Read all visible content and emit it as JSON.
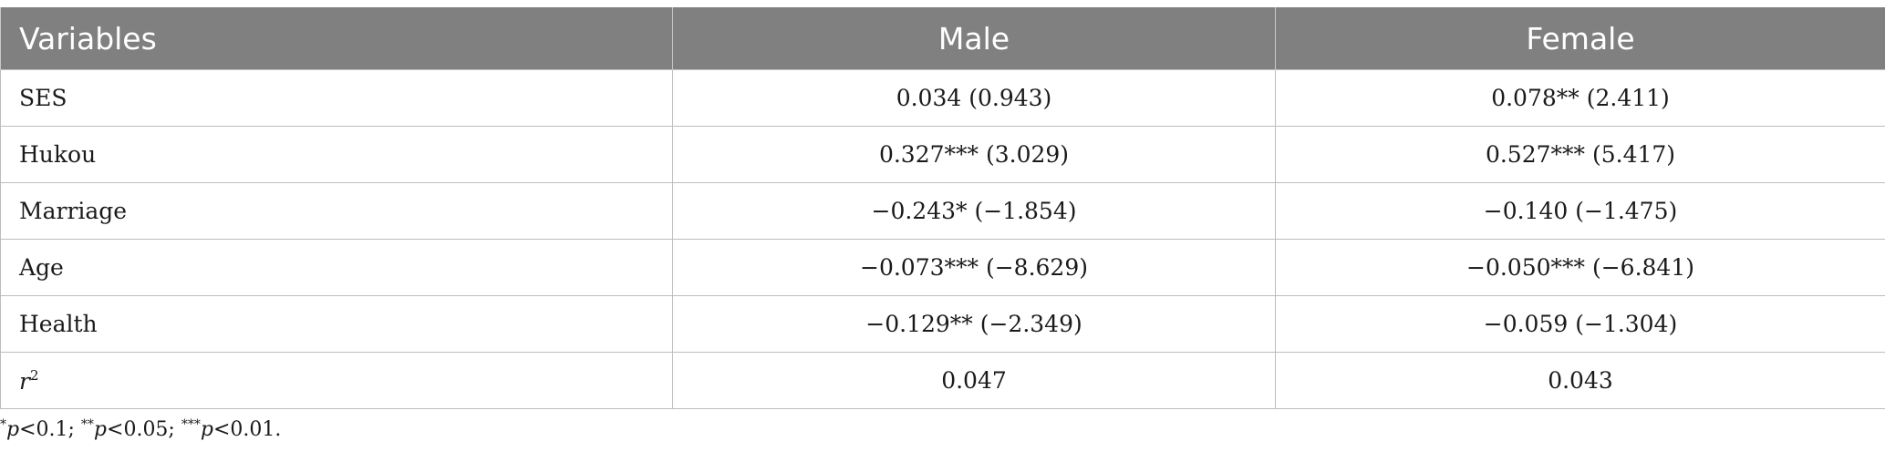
{
  "table": {
    "headers": [
      "Variables",
      "Male",
      "Female"
    ],
    "rows": [
      {
        "variable": "SES",
        "male": "0.034 (0.943)",
        "female": "0.078** (2.411)"
      },
      {
        "variable": "Hukou",
        "male": "0.327*** (3.029)",
        "female": "0.527*** (5.417)"
      },
      {
        "variable": "Marriage",
        "male": "−0.243* (−1.854)",
        "female": "−0.140 (−1.475)"
      },
      {
        "variable": "Age",
        "male": "−0.073*** (−8.629)",
        "female": "−0.050*** (−6.841)"
      },
      {
        "variable": "Health",
        "male": "−0.129** (−2.349)",
        "female": "−0.059 (−1.304)"
      }
    ],
    "r2_row": {
      "variable_base": "r",
      "variable_sup": "2",
      "male": "0.047",
      "female": "0.043"
    }
  },
  "footnote": {
    "parts": [
      {
        "sup": "*",
        "p": "p",
        "text": "<0.1; "
      },
      {
        "sup": "**",
        "p": "p",
        "text": "<0.05; "
      },
      {
        "sup": "***",
        "p": "p",
        "text": "<0.01."
      }
    ]
  },
  "colors": {
    "header_bg": "#808080",
    "header_text": "#ffffff",
    "border": "#bdbdbd"
  }
}
